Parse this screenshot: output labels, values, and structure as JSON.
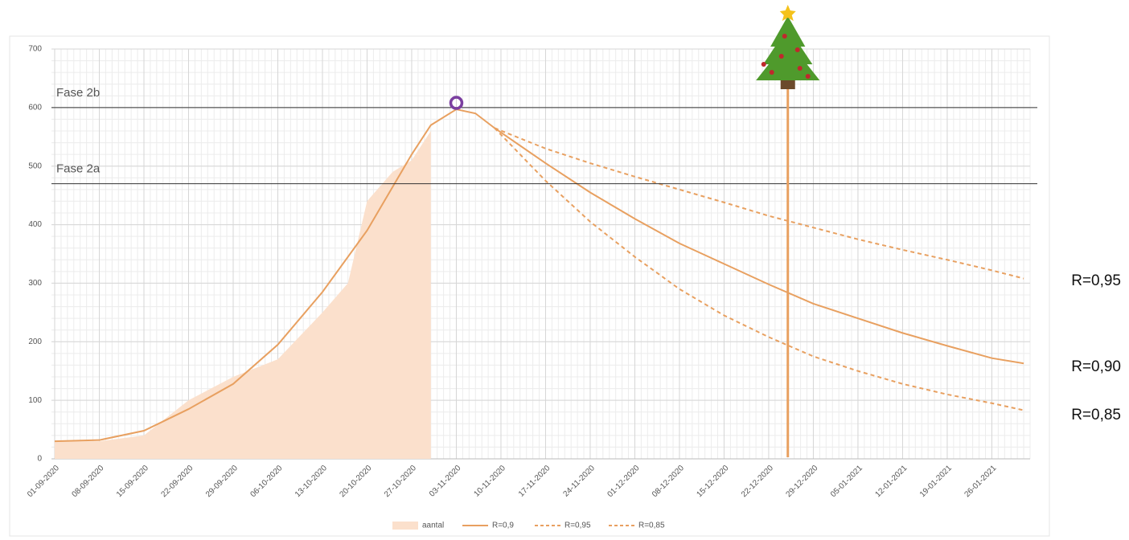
{
  "chart_data": {
    "type": "line",
    "xlim": [
      "01-09-2020",
      "01-02-2021"
    ],
    "ylim": [
      0,
      700
    ],
    "yticks": [
      0,
      100,
      200,
      300,
      400,
      500,
      600,
      700
    ],
    "xticks": [
      "01-09-2020",
      "08-09-2020",
      "15-09-2020",
      "22-09-2020",
      "29-09-2020",
      "06-10-2020",
      "13-10-2020",
      "20-10-2020",
      "27-10-2020",
      "03-11-2020",
      "10-11-2020",
      "17-11-2020",
      "24-11-2020",
      "01-12-2020",
      "08-12-2020",
      "15-12-2020",
      "22-12-2020",
      "29-12-2020",
      "05-01-2021",
      "12-01-2021",
      "19-01-2021",
      "26-01-2021"
    ],
    "grid": true,
    "series": [
      {
        "name": "aantal",
        "kind": "area",
        "color": "#fbe0cc",
        "x": [
          "01-09-2020",
          "08-09-2020",
          "15-09-2020",
          "22-09-2020",
          "29-09-2020",
          "06-10-2020",
          "13-10-2020",
          "17-10-2020",
          "20-10-2020",
          "24-10-2020",
          "27-10-2020",
          "30-10-2020"
        ],
        "values": [
          30,
          30,
          40,
          100,
          140,
          170,
          250,
          300,
          440,
          490,
          510,
          560
        ]
      },
      {
        "name": "R=0,9",
        "kind": "line",
        "style": "solid",
        "color": "#e8a060",
        "x": [
          "01-09-2020",
          "08-09-2020",
          "15-09-2020",
          "22-09-2020",
          "29-09-2020",
          "06-10-2020",
          "13-10-2020",
          "20-10-2020",
          "27-10-2020",
          "30-10-2020",
          "03-11-2020",
          "06-11-2020",
          "09-11-2020",
          "17-11-2020",
          "24-11-2020",
          "01-12-2020",
          "08-12-2020",
          "15-12-2020",
          "22-12-2020",
          "29-12-2020",
          "05-01-2021",
          "12-01-2021",
          "19-01-2021",
          "26-01-2021",
          "31-01-2021"
        ],
        "values": [
          30,
          32,
          48,
          85,
          128,
          195,
          285,
          390,
          520,
          570,
          597,
          590,
          565,
          505,
          455,
          410,
          368,
          333,
          298,
          265,
          240,
          215,
          193,
          172,
          163
        ]
      },
      {
        "name": "R=0,95",
        "kind": "line",
        "style": "dashed",
        "color": "#e8a060",
        "x": [
          "09-11-2020",
          "17-11-2020",
          "24-11-2020",
          "01-12-2020",
          "08-12-2020",
          "15-12-2020",
          "22-12-2020",
          "29-12-2020",
          "05-01-2021",
          "12-01-2021",
          "19-01-2021",
          "26-01-2021",
          "31-01-2021"
        ],
        "values": [
          565,
          530,
          505,
          482,
          460,
          438,
          415,
          395,
          375,
          357,
          340,
          322,
          308
        ]
      },
      {
        "name": "R=0,85",
        "kind": "line",
        "style": "dashed",
        "color": "#e8a060",
        "x": [
          "09-11-2020",
          "17-11-2020",
          "24-11-2020",
          "01-12-2020",
          "08-12-2020",
          "15-12-2020",
          "22-12-2020",
          "29-12-2020",
          "05-01-2021",
          "12-01-2021",
          "19-01-2021",
          "26-01-2021",
          "31-01-2021"
        ],
        "values": [
          565,
          475,
          405,
          345,
          290,
          245,
          208,
          175,
          150,
          128,
          110,
          95,
          83
        ]
      }
    ],
    "thresholds": [
      {
        "label": "Fase 2b",
        "value": 600
      },
      {
        "label": "Fase 2a",
        "value": 470
      }
    ],
    "christmas_line": "25-12-2020",
    "peak_marker": {
      "x": "03-11-2020",
      "y": 608,
      "color": "#7b3fa0"
    },
    "side_labels": [
      "R=0,95",
      "R=0,90",
      "R=0,85"
    ]
  }
}
